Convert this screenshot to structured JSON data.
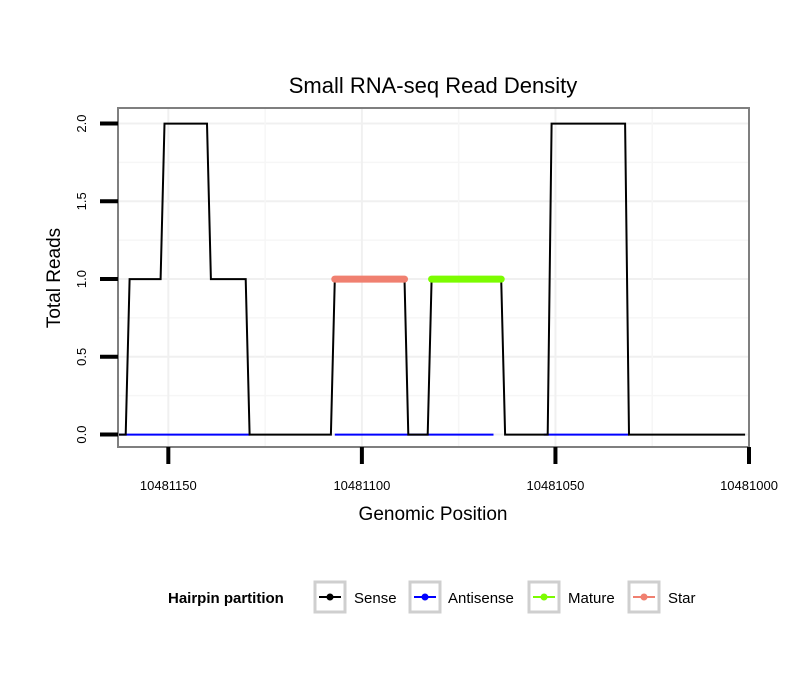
{
  "chart_data": {
    "type": "line",
    "title": "Small RNA-seq Read Density",
    "xlabel": "Genomic Position",
    "ylabel": "Total Reads",
    "xlim": [
      10481163,
      10481000
    ],
    "ylim": [
      -0.08,
      2.1
    ],
    "x_reversed": true,
    "x_ticks": [
      10481150,
      10481100,
      10481050,
      10481000
    ],
    "x_tick_labels": [
      "10481150",
      "10481100",
      "10481050",
      "10481000"
    ],
    "y_ticks": [
      0.0,
      0.5,
      1.0,
      1.5,
      2.0
    ],
    "y_tick_labels": [
      "0.0",
      "0.5",
      "1.0",
      "1.5",
      "2.0"
    ],
    "grid": true,
    "legend": {
      "title": "Hairpin partition",
      "position": "bottom",
      "entries": [
        "Sense",
        "Antisense",
        "Mature",
        "Star"
      ]
    },
    "series": [
      {
        "name": "Antisense",
        "color": "#0000FF",
        "width": 2,
        "x": [
          10481163,
          10481129
        ],
        "y": [
          0,
          0
        ]
      },
      {
        "name": "Antisense",
        "color": "#0000FF",
        "width": 2,
        "x": [
          10481107,
          10481066
        ],
        "y": [
          0,
          0
        ]
      },
      {
        "name": "Antisense",
        "color": "#0000FF",
        "width": 2,
        "x": [
          10481053,
          10481031
        ],
        "y": [
          0,
          0
        ]
      },
      {
        "name": "Sense",
        "color": "#000000",
        "width": 2,
        "x": [
          10481163,
          10481161,
          10481160,
          10481152,
          10481151,
          10481140,
          10481139,
          10481130,
          10481129,
          10481108,
          10481107,
          10481089,
          10481088,
          10481083,
          10481082,
          10481064,
          10481063,
          10481052,
          10481051,
          10481032,
          10481031,
          10481001
        ],
        "y": [
          0,
          0,
          1,
          1,
          2,
          2,
          1,
          1,
          0,
          0,
          1,
          1,
          0,
          0,
          1,
          1,
          0,
          0,
          2,
          2,
          0,
          0
        ]
      },
      {
        "name": "Star",
        "color": "#F08070",
        "width": 7,
        "x": [
          10481107,
          10481089
        ],
        "y": [
          1,
          1
        ]
      },
      {
        "name": "Mature",
        "color": "#7CFC00",
        "width": 7,
        "x": [
          10481082,
          10481064
        ],
        "y": [
          1,
          1
        ]
      }
    ]
  }
}
